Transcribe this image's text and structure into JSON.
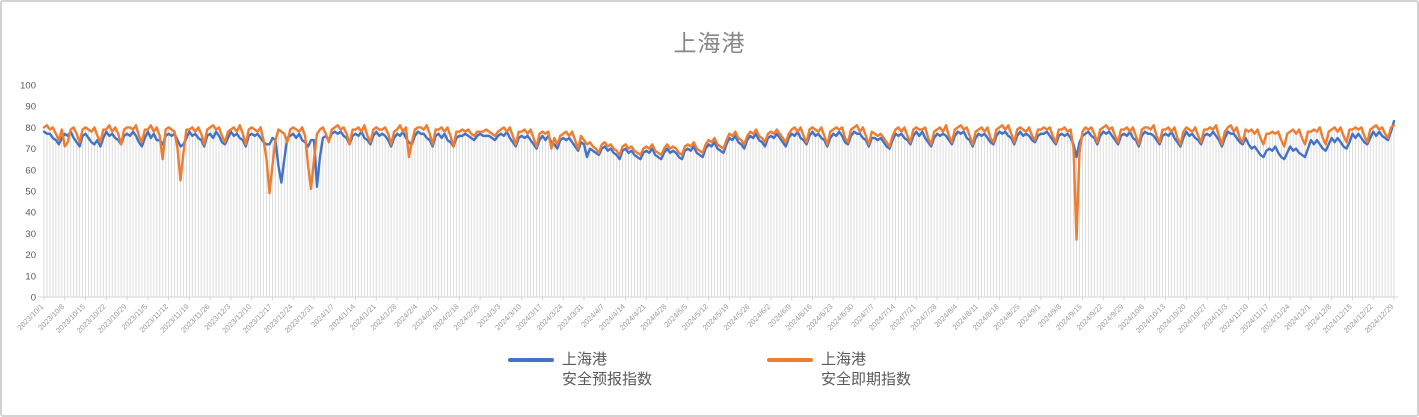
{
  "chart_data": {
    "type": "line",
    "title": "上海港",
    "xlabel": "",
    "ylabel": "",
    "ylim": [
      0,
      100
    ],
    "y_ticks": [
      0,
      10,
      20,
      30,
      40,
      50,
      60,
      70,
      80,
      90,
      100
    ],
    "grid": "vertical-drop-lines-per-day",
    "legend_position": "bottom",
    "x_range": [
      "2023/10/1",
      "2024/12/29"
    ],
    "x_tick_interval_days": 7,
    "x_tick_labels": [
      "2023/10/1",
      "2023/10/8",
      "2023/10/15",
      "2023/10/22",
      "2023/10/29",
      "2023/11/5",
      "2023/11/12",
      "2023/11/19",
      "2023/11/26",
      "2023/12/3",
      "2023/12/10",
      "2023/12/17",
      "2023/12/24",
      "2023/12/31",
      "2024/1/7",
      "2024/1/14",
      "2024/1/21",
      "2024/1/28",
      "2024/2/4",
      "2024/2/11",
      "2024/2/18",
      "2024/2/25",
      "2024/3/3",
      "2024/3/10",
      "2024/3/17",
      "2024/3/24",
      "2024/3/31",
      "2024/4/7",
      "2024/4/14",
      "2024/4/21",
      "2024/4/28",
      "2024/5/5",
      "2024/5/12",
      "2024/5/19",
      "2024/5/26",
      "2024/6/2",
      "2024/6/9",
      "2024/6/16",
      "2024/6/23",
      "2024/6/30",
      "2024/7/7",
      "2024/7/14",
      "2024/7/21",
      "2024/7/28",
      "2024/8/4",
      "2024/8/11",
      "2024/8/18",
      "2024/8/25",
      "2024/9/1",
      "2024/9/8",
      "2024/9/15",
      "2024/9/22",
      "2024/9/29",
      "2024/10/6",
      "2024/10/13",
      "2024/10/20",
      "2024/10/27",
      "2024/11/3",
      "2024/11/10",
      "2024/11/17",
      "2024/11/24",
      "2024/12/1",
      "2024/12/8",
      "2024/12/15",
      "2024/12/22",
      "2024/12/29"
    ],
    "series": [
      {
        "name": "上海港安全预报指数",
        "name_line1": "上海港",
        "name_line2": "安全预报指数",
        "color": "#4472C4",
        "values": [
          78,
          77,
          77,
          75,
          74,
          72,
          75,
          77,
          76,
          78,
          75,
          73,
          71,
          76,
          77,
          75,
          73,
          72,
          74,
          71,
          75,
          78,
          76,
          77,
          75,
          74,
          72,
          76,
          77,
          76,
          78,
          76,
          73,
          71,
          75,
          78,
          75,
          77,
          74,
          74,
          72,
          76,
          77,
          76,
          77,
          74,
          71,
          72,
          75,
          78,
          76,
          77,
          75,
          74,
          71,
          76,
          77,
          75,
          78,
          76,
          73,
          72,
          75,
          78,
          76,
          77,
          75,
          74,
          71,
          76,
          77,
          76,
          77,
          75,
          73,
          72,
          72,
          75,
          74,
          62,
          54,
          65,
          75,
          76,
          77,
          75,
          77,
          74,
          73,
          71,
          74,
          74,
          52,
          66,
          75,
          76,
          74,
          77,
          78,
          77,
          78,
          76,
          75,
          72,
          76,
          77,
          76,
          78,
          75,
          74,
          72,
          76,
          78,
          76,
          77,
          76,
          74,
          71,
          75,
          77,
          76,
          78,
          75,
          73,
          72,
          76,
          78,
          77,
          77,
          75,
          74,
          71,
          76,
          77,
          75,
          77,
          74,
          73,
          71,
          75,
          76,
          76,
          77,
          76,
          75,
          74,
          76,
          77,
          76,
          76,
          76,
          75,
          74,
          76,
          77,
          76,
          78,
          75,
          73,
          71,
          75,
          76,
          75,
          76,
          74,
          72,
          70,
          74,
          76,
          74,
          76,
          73,
          72,
          70,
          74,
          75,
          74,
          75,
          73,
          71,
          69,
          73,
          72,
          66,
          70,
          69,
          68,
          67,
          70,
          71,
          69,
          70,
          68,
          67,
          65,
          69,
          70,
          68,
          69,
          67,
          66,
          65,
          68,
          69,
          68,
          70,
          67,
          66,
          65,
          68,
          70,
          68,
          69,
          68,
          66,
          65,
          69,
          70,
          69,
          71,
          68,
          67,
          66,
          70,
          72,
          71,
          73,
          70,
          69,
          68,
          72,
          75,
          74,
          76,
          73,
          72,
          70,
          74,
          76,
          75,
          77,
          74,
          73,
          71,
          75,
          76,
          75,
          77,
          75,
          73,
          71,
          75,
          77,
          76,
          78,
          75,
          74,
          72,
          76,
          78,
          76,
          77,
          75,
          74,
          71,
          75,
          77,
          76,
          78,
          76,
          73,
          72,
          76,
          78,
          77,
          77,
          75,
          74,
          71,
          75,
          75,
          74,
          75,
          73,
          71,
          70,
          74,
          77,
          76,
          77,
          75,
          74,
          72,
          76,
          78,
          76,
          78,
          75,
          73,
          71,
          75,
          77,
          76,
          77,
          76,
          74,
          72,
          76,
          78,
          77,
          78,
          75,
          74,
          71,
          75,
          77,
          76,
          77,
          75,
          73,
          72,
          76,
          78,
          77,
          78,
          76,
          75,
          72,
          76,
          78,
          76,
          77,
          76,
          74,
          73,
          76,
          77,
          77,
          78,
          76,
          74,
          72,
          76,
          77,
          76,
          77,
          75,
          72,
          66,
          73,
          76,
          77,
          78,
          76,
          75,
          72,
          76,
          78,
          77,
          78,
          76,
          74,
          72,
          76,
          77,
          76,
          78,
          75,
          74,
          71,
          76,
          78,
          77,
          77,
          76,
          74,
          72,
          76,
          77,
          76,
          78,
          75,
          73,
          71,
          75,
          78,
          76,
          77,
          75,
          74,
          72,
          76,
          77,
          76,
          78,
          76,
          74,
          71,
          75,
          78,
          77,
          77,
          75,
          73,
          72,
          75,
          72,
          70,
          71,
          69,
          67,
          66,
          69,
          70,
          69,
          71,
          68,
          66,
          65,
          68,
          71,
          69,
          70,
          68,
          67,
          66,
          70,
          74,
          72,
          74,
          72,
          70,
          69,
          72,
          75,
          73,
          75,
          73,
          71,
          70,
          73,
          77,
          75,
          77,
          75,
          73,
          72,
          75,
          78,
          76,
          78,
          76,
          75,
          74,
          78,
          83
        ]
      },
      {
        "name": "上海港安全即期指数",
        "name_line1": "上海港",
        "name_line2": "安全即期指数",
        "color": "#ED7D31",
        "values": [
          80,
          81,
          79,
          80,
          77,
          74,
          79,
          71,
          73,
          79,
          80,
          77,
          73,
          79,
          80,
          79,
          78,
          80,
          76,
          73,
          79,
          79,
          81,
          78,
          80,
          77,
          72,
          79,
          80,
          80,
          79,
          81,
          76,
          73,
          79,
          79,
          81,
          78,
          80,
          76,
          65,
          79,
          80,
          79,
          78,
          70,
          55,
          68,
          79,
          79,
          80,
          78,
          80,
          77,
          72,
          79,
          80,
          81,
          79,
          80,
          76,
          73,
          78,
          79,
          80,
          78,
          81,
          77,
          72,
          79,
          80,
          79,
          78,
          80,
          74,
          65,
          49,
          62,
          74,
          79,
          78,
          77,
          73,
          79,
          80,
          79,
          78,
          80,
          76,
          62,
          51,
          65,
          77,
          79,
          80,
          77,
          73,
          79,
          80,
          81,
          79,
          80,
          77,
          72,
          79,
          79,
          80,
          78,
          81,
          76,
          73,
          79,
          80,
          79,
          79,
          80,
          77,
          72,
          78,
          79,
          81,
          78,
          80,
          66,
          73,
          79,
          80,
          80,
          79,
          81,
          77,
          72,
          79,
          79,
          80,
          78,
          80,
          76,
          71,
          78,
          78,
          79,
          78,
          79,
          77,
          76,
          78,
          78,
          78,
          79,
          78,
          77,
          76,
          78,
          79,
          80,
          78,
          80,
          76,
          72,
          78,
          78,
          79,
          77,
          79,
          75,
          71,
          77,
          78,
          77,
          78,
          70,
          75,
          72,
          76,
          77,
          78,
          76,
          78,
          74,
          70,
          76,
          74,
          72,
          73,
          71,
          70,
          68,
          72,
          73,
          71,
          72,
          70,
          69,
          67,
          71,
          72,
          70,
          71,
          69,
          68,
          67,
          70,
          71,
          70,
          72,
          69,
          68,
          67,
          70,
          72,
          70,
          71,
          70,
          68,
          67,
          71,
          72,
          71,
          73,
          70,
          69,
          68,
          72,
          74,
          73,
          75,
          72,
          71,
          70,
          74,
          77,
          76,
          78,
          75,
          74,
          72,
          76,
          78,
          77,
          79,
          76,
          75,
          73,
          77,
          78,
          77,
          79,
          77,
          75,
          73,
          77,
          79,
          80,
          78,
          80,
          76,
          73,
          79,
          80,
          79,
          78,
          80,
          76,
          72,
          78,
          79,
          80,
          79,
          80,
          75,
          73,
          79,
          80,
          81,
          78,
          80,
          76,
          72,
          78,
          77,
          76,
          77,
          75,
          73,
          71,
          76,
          79,
          80,
          78,
          80,
          76,
          73,
          79,
          80,
          79,
          79,
          80,
          75,
          72,
          78,
          79,
          80,
          78,
          81,
          76,
          73,
          79,
          80,
          81,
          79,
          80,
          76,
          72,
          78,
          79,
          80,
          78,
          80,
          75,
          73,
          79,
          80,
          81,
          79,
          81,
          77,
          73,
          79,
          80,
          79,
          78,
          80,
          76,
          74,
          79,
          79,
          80,
          79,
          80,
          76,
          73,
          79,
          79,
          80,
          78,
          79,
          70,
          27,
          68,
          78,
          80,
          79,
          80,
          77,
          73,
          79,
          80,
          81,
          79,
          80,
          76,
          73,
          79,
          79,
          80,
          78,
          80,
          76,
          72,
          79,
          80,
          80,
          79,
          81,
          76,
          73,
          79,
          79,
          80,
          78,
          80,
          75,
          72,
          78,
          80,
          79,
          78,
          80,
          76,
          73,
          79,
          79,
          80,
          79,
          81,
          76,
          72,
          78,
          80,
          81,
          78,
          80,
          75,
          73,
          79,
          78,
          79,
          77,
          79,
          75,
          72,
          77,
          77,
          78,
          77,
          78,
          74,
          71,
          77,
          78,
          79,
          77,
          79,
          75,
          72,
          78,
          78,
          79,
          78,
          80,
          75,
          72,
          78,
          79,
          80,
          78,
          80,
          76,
          73,
          79,
          79,
          80,
          79,
          80,
          76,
          73,
          79,
          80,
          81,
          79,
          80,
          77,
          75,
          80,
          81
        ]
      }
    ],
    "colors": {
      "forecast_line": "#4472C4",
      "spot_line": "#ED7D31",
      "drop_lines": "#dcdcdc",
      "axis_line": "#d4d4d4",
      "title_text": "#878787",
      "y_tick_text": "#595959",
      "x_tick_text": "#9a9a9a",
      "legend_text": "#595959"
    }
  }
}
